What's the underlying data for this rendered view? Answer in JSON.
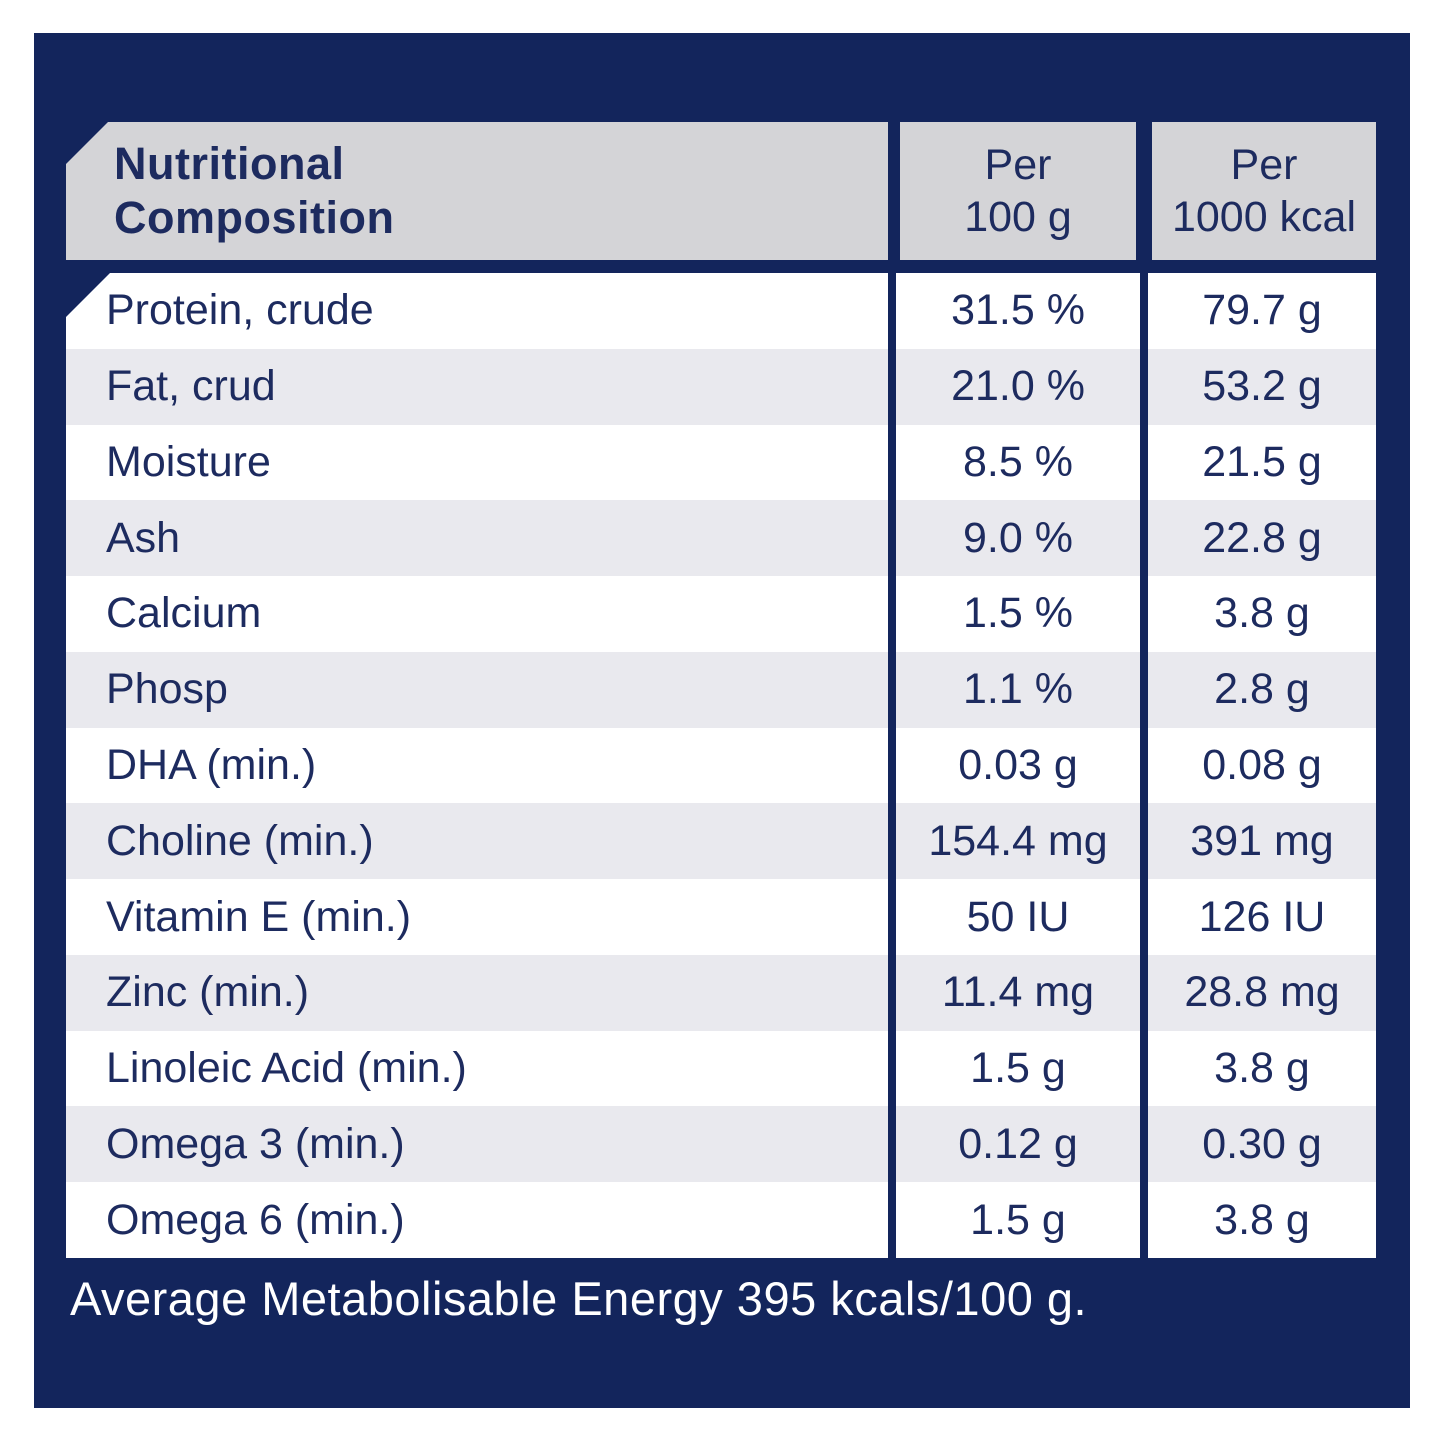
{
  "table": {
    "title_lines": [
      "Nutritional",
      "Composition"
    ],
    "col_headers": [
      {
        "line1": "Per",
        "line2": "100 g"
      },
      {
        "line1": "Per",
        "line2": "1000 kcal"
      }
    ],
    "rows": [
      {
        "label": "Protein, crude",
        "per_100g": "31.5 %",
        "per_1000kcal": "79.7 g"
      },
      {
        "label": "Fat, crud",
        "per_100g": "21.0 %",
        "per_1000kcal": "53.2 g"
      },
      {
        "label": "Moisture",
        "per_100g": "8.5 %",
        "per_1000kcal": "21.5 g"
      },
      {
        "label": "Ash",
        "per_100g": "9.0 %",
        "per_1000kcal": "22.8 g"
      },
      {
        "label": "Calcium",
        "per_100g": "1.5 %",
        "per_1000kcal": "3.8 g"
      },
      {
        "label": "Phosp",
        "per_100g": "1.1 %",
        "per_1000kcal": "2.8 g"
      },
      {
        "label": "DHA (min.)",
        "per_100g": "0.03 g",
        "per_1000kcal": "0.08 g"
      },
      {
        "label": "Choline (min.)",
        "per_100g": "154.4 mg",
        "per_1000kcal": "391 mg"
      },
      {
        "label": "Vitamin E (min.)",
        "per_100g": "50 IU",
        "per_1000kcal": "126 IU"
      },
      {
        "label": "Zinc (min.)",
        "per_100g": "11.4 mg",
        "per_1000kcal": "28.8 mg"
      },
      {
        "label": "Linoleic Acid (min.)",
        "per_100g": "1.5 g",
        "per_1000kcal": "3.8 g"
      },
      {
        "label": "Omega 3 (min.)",
        "per_100g": "0.12 g",
        "per_1000kcal": "0.30 g"
      },
      {
        "label": "Omega 6 (min.)",
        "per_100g": "1.5 g",
        "per_1000kcal": "3.8 g"
      }
    ],
    "footer": "Average Metabolisable Energy 395 kcals/100 g."
  },
  "colors": {
    "panel_navy": "#13255c",
    "text_navy": "#1d2b5f",
    "header_gray": "#d4d4d7",
    "row_alt_gray": "#e9e9ee",
    "row_white": "#ffffff",
    "footer_text": "#ffffff"
  }
}
